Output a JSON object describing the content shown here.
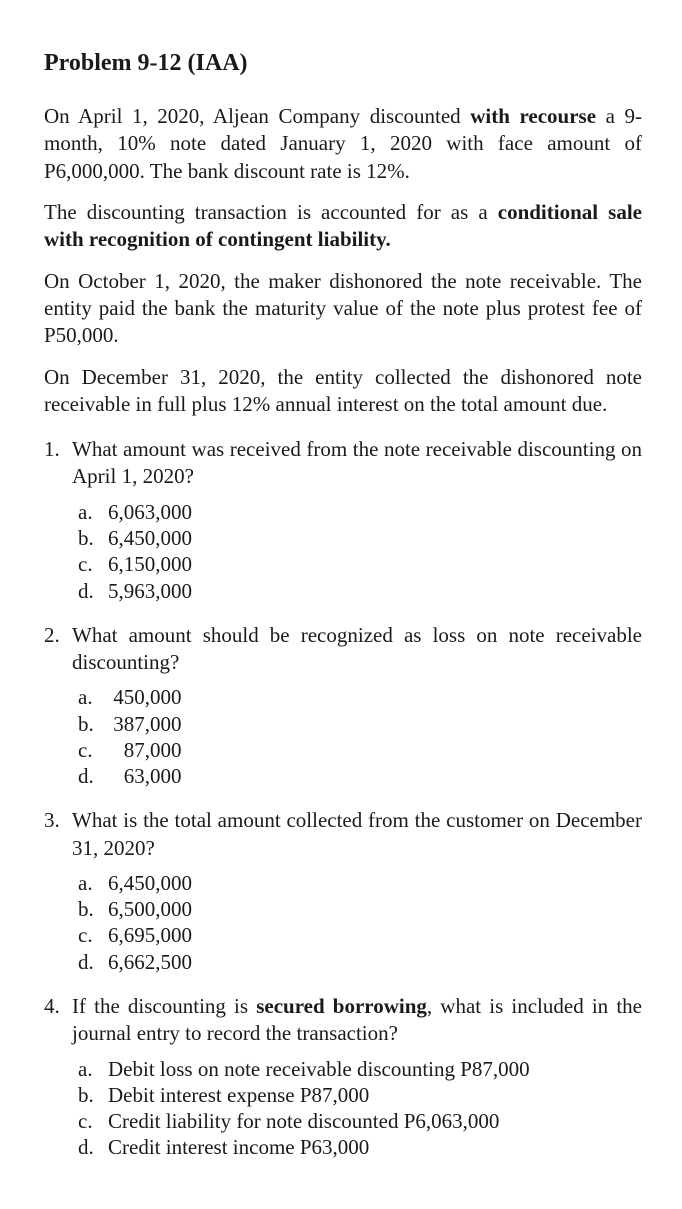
{
  "title_main": "Problem 9-12",
  "title_suffix": "  (IAA)",
  "p1_a": "On April 1, 2020, Aljean Company discounted ",
  "p1_b": "with recourse",
  "p1_c": " a 9-month, 10% note dated January 1, 2020 with face amount of P6,000,000. The bank discount rate is 12%.",
  "p2_a": "The discounting transaction is accounted for as a ",
  "p2_b": "conditional sale with recognition of contingent liability.",
  "p3": "On October 1, 2020, the maker dishonored the note receivable. The entity paid the bank the maturity value of the note plus protest fee of P50,000.",
  "p4": "On December 31, 2020, the entity collected the dishonored note receivable in full plus 12% annual interest on the total amount due.",
  "q1": {
    "num": "1.",
    "text": "What amount was received from the note receivable discounting on April 1, 2020?",
    "a": "6,063,000",
    "b": "6,450,000",
    "c": "6,150,000",
    "d": "5,963,000"
  },
  "q2": {
    "num": "2.",
    "text": "What amount should be recognized as loss on note receivable discounting?",
    "a": " 450,000",
    "b": " 387,000",
    "c": "   87,000",
    "d": "   63,000"
  },
  "q3": {
    "num": "3.",
    "text": "What is the total amount collected from the customer on December 31, 2020?",
    "a": "6,450,000",
    "b": "6,500,000",
    "c": "6,695,000",
    "d": "6,662,500"
  },
  "q4": {
    "num": "4.",
    "text_a": "If the discounting is ",
    "text_b": "secured borrowing",
    "text_c": ", what is included in the journal entry to record the transaction?",
    "a": "Debit loss on note receivable discounting P87,000",
    "b": "Debit interest expense P87,000",
    "c": "Credit liability for note discounted P6,063,000",
    "d": "Credit interest income P63,000"
  },
  "letters": {
    "a": "a.",
    "b": "b.",
    "c": "c.",
    "d": "d."
  }
}
